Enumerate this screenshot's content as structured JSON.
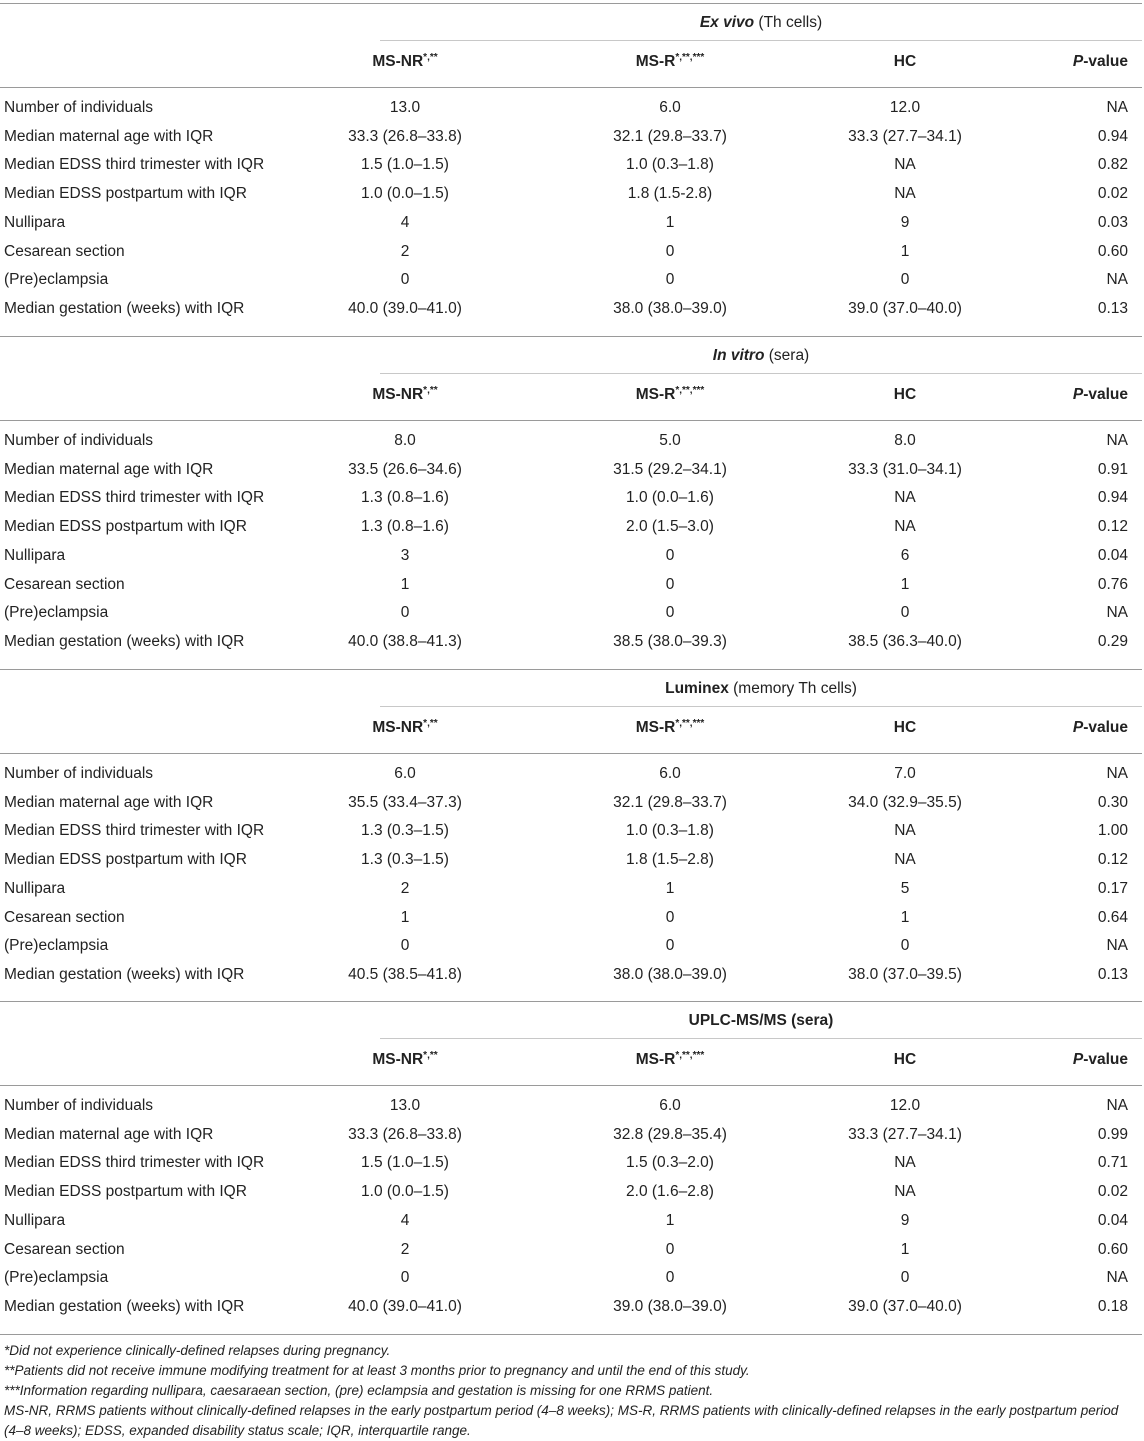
{
  "columns": {
    "col1": "MS-NR",
    "col1_sup": "*,**",
    "col2": "MS-R",
    "col2_sup": "*,**,***",
    "col3": "HC",
    "col4_italic": "P",
    "col4_rest": "-value"
  },
  "sections": [
    {
      "title_italic": "Ex vivo",
      "title_bold": "",
      "title_rest": " (Th cells)",
      "rows": [
        {
          "label": "Number of individuals",
          "v1": "13.0",
          "v2": "6.0",
          "v3": "12.0",
          "p": "NA"
        },
        {
          "label": "Median maternal age with IQR",
          "v1": "33.3 (26.8–33.8)",
          "v2": "32.1 (29.8–33.7)",
          "v3": "33.3 (27.7–34.1)",
          "p": "0.94"
        },
        {
          "label": "Median EDSS third trimester with IQR",
          "v1": "1.5 (1.0–1.5)",
          "v2": "1.0 (0.3–1.8)",
          "v3": "NA",
          "p": "0.82"
        },
        {
          "label": "Median EDSS postpartum with IQR",
          "v1": "1.0 (0.0–1.5)",
          "v2": "1.8 (1.5-2.8)",
          "v3": "NA",
          "p": "0.02"
        },
        {
          "label": "Nullipara",
          "v1": "4",
          "v2": "1",
          "v3": "9",
          "p": "0.03"
        },
        {
          "label": "Cesarean section",
          "v1": "2",
          "v2": "0",
          "v3": "1",
          "p": "0.60"
        },
        {
          "label": "(Pre)eclampsia",
          "v1": "0",
          "v2": "0",
          "v3": "0",
          "p": "NA"
        },
        {
          "label": "Median gestation (weeks) with IQR",
          "v1": "40.0 (39.0–41.0)",
          "v2": "38.0 (38.0–39.0)",
          "v3": "39.0 (37.0–40.0)",
          "p": "0.13"
        }
      ]
    },
    {
      "title_italic": "In vitro",
      "title_bold": "",
      "title_rest": " (sera)",
      "rows": [
        {
          "label": "Number of individuals",
          "v1": "8.0",
          "v2": "5.0",
          "v3": "8.0",
          "p": "NA"
        },
        {
          "label": "Median maternal age with IQR",
          "v1": "33.5 (26.6–34.6)",
          "v2": "31.5 (29.2–34.1)",
          "v3": "33.3 (31.0–34.1)",
          "p": "0.91"
        },
        {
          "label": "Median EDSS third trimester with IQR",
          "v1": "1.3 (0.8–1.6)",
          "v2": "1.0 (0.0–1.6)",
          "v3": "NA",
          "p": "0.94"
        },
        {
          "label": "Median EDSS postpartum with IQR",
          "v1": "1.3 (0.8–1.6)",
          "v2": "2.0 (1.5–3.0)",
          "v3": "NA",
          "p": "0.12"
        },
        {
          "label": "Nullipara",
          "v1": "3",
          "v2": "0",
          "v3": "6",
          "p": "0.04"
        },
        {
          "label": "Cesarean section",
          "v1": "1",
          "v2": "0",
          "v3": "1",
          "p": "0.76"
        },
        {
          "label": "(Pre)eclampsia",
          "v1": "0",
          "v2": "0",
          "v3": "0",
          "p": "NA"
        },
        {
          "label": "Median gestation (weeks) with IQR",
          "v1": "40.0 (38.8–41.3)",
          "v2": "38.5 (38.0–39.3)",
          "v3": "38.5 (36.3–40.0)",
          "p": "0.29"
        }
      ]
    },
    {
      "title_italic": "",
      "title_bold": "Luminex",
      "title_rest": " (memory Th cells)",
      "rows": [
        {
          "label": "Number of individuals",
          "v1": "6.0",
          "v2": "6.0",
          "v3": "7.0",
          "p": "NA"
        },
        {
          "label": "Median maternal age with IQR",
          "v1": "35.5 (33.4–37.3)",
          "v2": "32.1 (29.8–33.7)",
          "v3": "34.0 (32.9–35.5)",
          "p": "0.30"
        },
        {
          "label": "Median EDSS third trimester with IQR",
          "v1": "1.3 (0.3–1.5)",
          "v2": "1.0 (0.3–1.8)",
          "v3": "NA",
          "p": "1.00"
        },
        {
          "label": "Median EDSS postpartum with IQR",
          "v1": "1.3 (0.3–1.5)",
          "v2": "1.8 (1.5–2.8)",
          "v3": "NA",
          "p": "0.12"
        },
        {
          "label": "Nullipara",
          "v1": "2",
          "v2": "1",
          "v3": "5",
          "p": "0.17"
        },
        {
          "label": "Cesarean section",
          "v1": "1",
          "v2": "0",
          "v3": "1",
          "p": "0.64"
        },
        {
          "label": "(Pre)eclampsia",
          "v1": "0",
          "v2": "0",
          "v3": "0",
          "p": "NA"
        },
        {
          "label": "Median gestation (weeks) with IQR",
          "v1": "40.5 (38.5–41.8)",
          "v2": "38.0 (38.0–39.0)",
          "v3": "38.0 (37.0–39.5)",
          "p": "0.13"
        }
      ]
    },
    {
      "title_italic": "",
      "title_bold": "UPLC-MS/MS",
      "title_rest": " (sera)",
      "rows": [
        {
          "label": "Number of individuals",
          "v1": "13.0",
          "v2": "6.0",
          "v3": "12.0",
          "p": "NA"
        },
        {
          "label": "Median maternal age with IQR",
          "v1": "33.3 (26.8–33.8)",
          "v2": "32.8 (29.8–35.4)",
          "v3": "33.3 (27.7–34.1)",
          "p": "0.99"
        },
        {
          "label": "Median EDSS third trimester with IQR",
          "v1": "1.5 (1.0–1.5)",
          "v2": "1.5 (0.3–2.0)",
          "v3": "NA",
          "p": "0.71"
        },
        {
          "label": "Median EDSS postpartum with IQR",
          "v1": "1.0 (0.0–1.5)",
          "v2": "2.0 (1.6–2.8)",
          "v3": "NA",
          "p": "0.02"
        },
        {
          "label": "Nullipara",
          "v1": "4",
          "v2": "1",
          "v3": "9",
          "p": "0.04"
        },
        {
          "label": "Cesarean section",
          "v1": "2",
          "v2": "0",
          "v3": "1",
          "p": "0.60"
        },
        {
          "label": "(Pre)eclampsia",
          "v1": "0",
          "v2": "0",
          "v3": "0",
          "p": "NA"
        },
        {
          "label": "Median gestation (weeks) with IQR",
          "v1": "40.0 (39.0–41.0)",
          "v2": "39.0 (38.0–39.0)",
          "v3": "39.0 (37.0–40.0)",
          "p": "0.18"
        }
      ]
    }
  ],
  "footnotes": [
    "*Did not experience clinically-defined relapses during pregnancy.",
    "**Patients did not receive immune modifying treatment for at least 3 months prior to pregnancy and until the end of this study.",
    "***Information regarding nullipara, caesaraean section, (pre) eclampsia and gestation is missing for one RRMS patient.",
    "MS-NR, RRMS patients without clinically-defined relapses in the early postpartum period (4–8 weeks); MS-R, RRMS patients with clinically-defined relapses in the early postpartum period (4–8 weeks); EDSS, expanded disability status scale; IQR, interquartile range."
  ]
}
